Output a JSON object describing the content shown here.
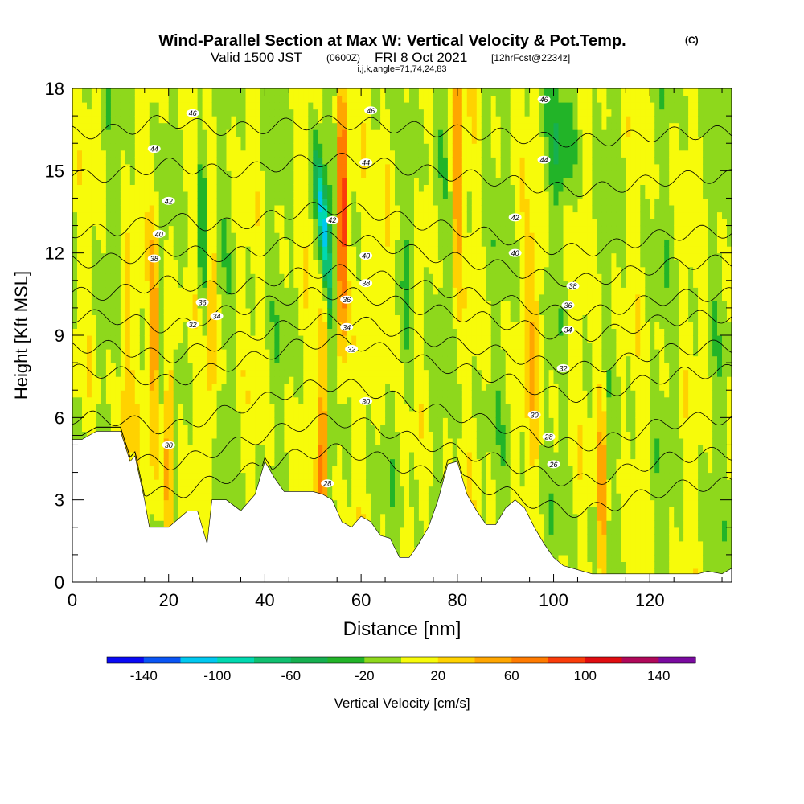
{
  "header": {
    "title": "Wind-Parallel Section at Max W: Vertical Velocity & Pot.Temp.",
    "copyright": "(C)",
    "subtitle_main": "Valid 1500 JST",
    "subtitle_utc": "(0600Z)",
    "subtitle_date": "FRI 8 Oct 2021",
    "subtitle_fcst": "[12hrFcst@2234z]",
    "indices": "i,j,k,angle=71,74,24,83"
  },
  "chart_data": {
    "type": "heatmap",
    "xlabel": "Distance [nm]",
    "ylabel": "Height [Kft MSL]",
    "xlim": [
      0,
      137
    ],
    "ylim": [
      0,
      18
    ],
    "x_ticks": [
      0,
      20,
      40,
      60,
      80,
      100,
      120
    ],
    "x_tick_labels": [
      "0",
      "20",
      "40",
      "60",
      "80",
      "100",
      "120"
    ],
    "y_ticks": [
      0,
      3,
      6,
      9,
      12,
      15,
      18
    ],
    "y_tick_labels": [
      "0",
      "3",
      "6",
      "9",
      "12",
      "15",
      "18"
    ],
    "grid": false,
    "terrain_top_kft": [
      [
        0,
        5.2
      ],
      [
        2,
        5.2
      ],
      [
        5,
        5.5
      ],
      [
        10,
        5.5
      ],
      [
        12,
        4.4
      ],
      [
        13,
        4.6
      ],
      [
        15,
        3.0
      ],
      [
        16,
        2.0
      ],
      [
        20,
        2.0
      ],
      [
        22,
        2.3
      ],
      [
        24,
        2.6
      ],
      [
        26,
        2.6
      ],
      [
        28,
        1.4
      ],
      [
        29,
        3.0
      ],
      [
        32,
        3.0
      ],
      [
        35,
        2.6
      ],
      [
        38,
        3.2
      ],
      [
        40,
        4.4
      ],
      [
        42,
        3.8
      ],
      [
        44,
        3.3
      ],
      [
        50,
        3.3
      ],
      [
        52,
        3.2
      ],
      [
        54,
        3.0
      ],
      [
        56,
        2.2
      ],
      [
        58,
        2.0
      ],
      [
        60,
        2.4
      ],
      [
        62,
        2.2
      ],
      [
        64,
        1.7
      ],
      [
        66,
        1.6
      ],
      [
        68,
        0.9
      ],
      [
        70,
        0.9
      ],
      [
        72,
        1.4
      ],
      [
        74,
        2.0
      ],
      [
        76,
        3.0
      ],
      [
        78,
        4.3
      ],
      [
        80,
        4.4
      ],
      [
        82,
        3.2
      ],
      [
        84,
        2.6
      ],
      [
        86,
        2.1
      ],
      [
        88,
        2.1
      ],
      [
        90,
        2.7
      ],
      [
        92,
        3.0
      ],
      [
        94,
        2.7
      ],
      [
        96,
        2.0
      ],
      [
        98,
        1.4
      ],
      [
        100,
        0.9
      ],
      [
        102,
        0.6
      ],
      [
        104,
        0.5
      ],
      [
        108,
        0.3
      ],
      [
        130,
        0.3
      ],
      [
        132,
        0.4
      ],
      [
        135,
        0.3
      ],
      [
        137,
        0.5
      ]
    ],
    "contours": [
      {
        "level": 26,
        "base": 3.6,
        "dx": 3,
        "dy": 2,
        "labels": [
          [
            100,
            4.3
          ]
        ]
      },
      {
        "level": 28,
        "base": 4.7,
        "dx": 3,
        "dy": 2,
        "labels": [
          [
            53,
            3.6
          ],
          [
            99,
            5.3
          ]
        ]
      },
      {
        "level": 30,
        "base": 6.0,
        "dx": 3,
        "dy": 2,
        "labels": [
          [
            20,
            5.0
          ],
          [
            61,
            6.6
          ],
          [
            96,
            6.1
          ]
        ]
      },
      {
        "level": 32,
        "base": 7.7,
        "dx": 3,
        "dy": 1.8,
        "labels": [
          [
            25,
            9.4
          ],
          [
            58,
            8.5
          ],
          [
            102,
            7.8
          ]
        ]
      },
      {
        "level": 34,
        "base": 8.6,
        "dx": 3,
        "dy": 1.6,
        "labels": [
          [
            30,
            9.7
          ],
          [
            57,
            9.3
          ],
          [
            103,
            9.2
          ]
        ]
      },
      {
        "level": 36,
        "base": 9.7,
        "dx": 3,
        "dy": 1.4,
        "labels": [
          [
            27,
            10.2
          ],
          [
            57,
            10.3
          ],
          [
            103,
            10.1
          ]
        ]
      },
      {
        "level": 38,
        "base": 10.5,
        "dx": 3,
        "dy": 1.4,
        "labels": [
          [
            17,
            11.8
          ],
          [
            61,
            10.9
          ],
          [
            104,
            10.8
          ]
        ]
      },
      {
        "level": 40,
        "base": 11.7,
        "dx": 3,
        "dy": 1.4,
        "labels": [
          [
            18,
            12.7
          ],
          [
            61,
            11.9
          ],
          [
            92,
            12.0
          ]
        ]
      },
      {
        "level": 42,
        "base": 12.8,
        "dx": 3,
        "dy": 1.4,
        "labels": [
          [
            20,
            13.9
          ],
          [
            54,
            13.2
          ],
          [
            92,
            13.3
          ]
        ]
      },
      {
        "level": 44,
        "base": 14.8,
        "dx": 3,
        "dy": 1.0,
        "labels": [
          [
            17,
            15.8
          ],
          [
            61,
            15.3
          ],
          [
            98,
            15.4
          ]
        ]
      },
      {
        "level": 46,
        "base": 16.4,
        "dx": 3,
        "dy": 0.6,
        "labels": [
          [
            25,
            17.1
          ],
          [
            62,
            17.2
          ],
          [
            98,
            17.6
          ]
        ]
      }
    ],
    "colorbar": {
      "label": "Vertical Velocity [cm/s]",
      "min": -160,
      "max": 160,
      "step": 20,
      "tick_values": [
        -140,
        -100,
        -60,
        -20,
        20,
        60,
        100,
        140
      ],
      "tick_labels": [
        "-140",
        "-100",
        "-60",
        "-20",
        "20",
        "60",
        "100",
        "140"
      ],
      "colors": [
        "#0a0af5",
        "#0a55f5",
        "#00c8f0",
        "#00d9b0",
        "#10c070",
        "#16b050",
        "#22b428",
        "#8ed81c",
        "#f7fb0a",
        "#ffd200",
        "#ffa600",
        "#ff7b00",
        "#fa3c0a",
        "#e00c10",
        "#b0085a",
        "#7a0aa0"
      ]
    }
  }
}
